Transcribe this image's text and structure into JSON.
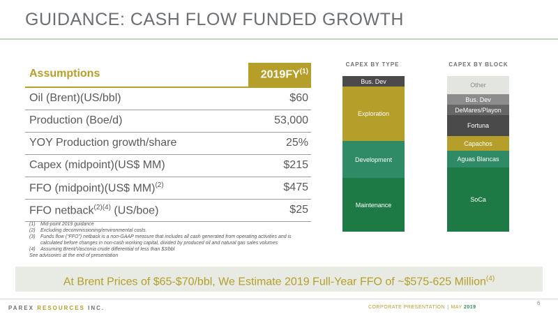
{
  "title": "GUIDANCE: CASH FLOW FUNDED GROWTH",
  "table": {
    "header_left": "Assumptions",
    "header_right": "2019FY",
    "header_right_sup": "(1)",
    "rows": [
      {
        "label": "Oil (Brent)(US/bbl)",
        "sup": "",
        "label_after": "",
        "value": "$60"
      },
      {
        "label": "Production (Boe/d)",
        "sup": "",
        "label_after": "",
        "value": "53,000"
      },
      {
        "label": "YOY Production growth/share",
        "sup": "",
        "label_after": "",
        "value": "25%"
      },
      {
        "label": "Capex (midpoint)(US$ MM)",
        "sup": "",
        "label_after": "",
        "value": "$215"
      },
      {
        "label": "FFO (midpoint)(US$ MM)",
        "sup": "(2)",
        "label_after": "",
        "value": "$475"
      },
      {
        "label": "FFO netback",
        "sup": "(2)(4)",
        "label_after": " (US/boe)",
        "value": "$25"
      }
    ]
  },
  "footnotes": [
    {
      "num": "(1)",
      "text": "Mid-point 2019 guidance"
    },
    {
      "num": "(2)",
      "text": "Excluding decommissioning/environmental costs."
    },
    {
      "num": "(3)",
      "text": "Funds flow (“FFO”) netback is a non-GAAP measure that includes all cash generated from operating activities and is calculated before changes in non-cash working capital, divided by produced oil and natural gas sales volumes"
    },
    {
      "num": "(4)",
      "text": "Assuming Brent/Vasconia crude differential of less than $3/bbl"
    },
    {
      "num": "",
      "text": "See advisories at the end of presentation"
    }
  ],
  "capex_by_type": {
    "title": "CAPEX BY TYPE",
    "segments": [
      {
        "label": "Maintenance",
        "color": "#1e7a44"
      },
      {
        "label": "Development",
        "color": "#2e8b66"
      },
      {
        "label": "Exploration",
        "color": "#b59e2a"
      },
      {
        "label": "Bus. Dev",
        "color": "#4a4a4a"
      }
    ]
  },
  "capex_by_block": {
    "title": "CAPEX BY BLOCK",
    "segments": [
      {
        "label": "SoCa",
        "color": "#1e7a44"
      },
      {
        "label": "Aguas Blancas",
        "color": "#2e8b66"
      },
      {
        "label": "Capachos",
        "color": "#b59e2a"
      },
      {
        "label": "Fortuna",
        "color": "#4a4a4a"
      },
      {
        "label": "DeMares/Playon",
        "color": "#666666"
      },
      {
        "label": "Bus. Dev",
        "color": "#8c8c8c"
      },
      {
        "label": "Other",
        "color": "#e3e6e0"
      }
    ]
  },
  "banner": {
    "text": "At Brent Prices of $65-$70/bbl, We Estimate 2019 Full-Year FFO  of ~$575-625 Million",
    "sup": "(4)"
  },
  "footer": {
    "brand_1": "PAREX",
    "brand_2": "RESOURCES",
    "brand_3": "INC.",
    "corp": "CORPORATE PRESENTATION",
    "sep": "|",
    "month": "MAY",
    "year": "2019",
    "page": "6"
  }
}
